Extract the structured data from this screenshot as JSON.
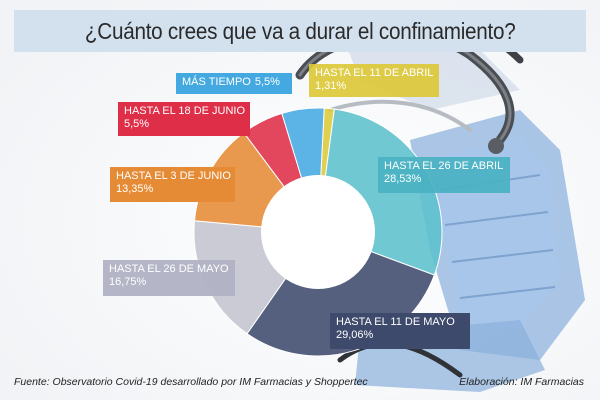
{
  "title": "¿Cuánto crees que va a durar el confinamiento?",
  "chart_data": {
    "type": "pie",
    "title": "¿Cuánto crees que va a durar el confinamiento?",
    "slices": [
      {
        "label": "HASTA EL 11 DE ABRIL",
        "value_text": "1,31%",
        "value": 1.31,
        "color": "#dcc93a"
      },
      {
        "label": "HASTA EL 26 DE ABRIL",
        "value_text": "28,53%",
        "value": 28.53,
        "color": "#5cc0cd"
      },
      {
        "label": "HASTA EL 11 DE MAYO",
        "value_text": "29,06%",
        "value": 29.06,
        "color": "#3d4a6c"
      },
      {
        "label": "HASTA EL 26 DE MAYO",
        "value_text": "16,75%",
        "value": 16.75,
        "color": "#c4c4d0"
      },
      {
        "label": "HASTA EL 3 DE JUNIO",
        "value_text": "13,35%",
        "value": 13.35,
        "color": "#e58b35"
      },
      {
        "label": "HASTA EL 18 DE JUNIO",
        "value_text": "5,5%",
        "value": 5.5,
        "color": "#de2e48"
      },
      {
        "label": "MÁS TIEMPO",
        "value_text": "5,5%",
        "value": 5.5,
        "color": "#45a9e1"
      }
    ]
  },
  "footer": {
    "source": "Fuente: Observatorio Covid-19 desarrollado por IM Farmacias y Shoppertec",
    "credit": "Elaboración: IM Farmacias"
  }
}
